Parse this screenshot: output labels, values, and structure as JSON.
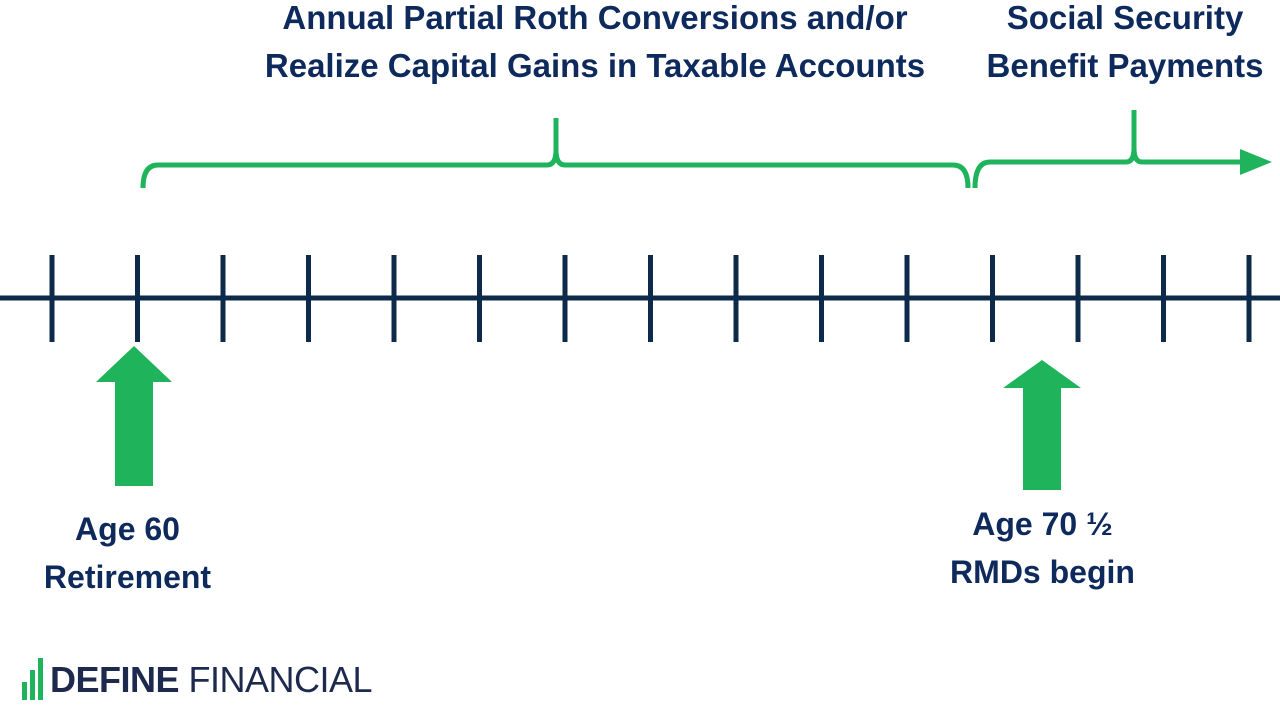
{
  "labels": {
    "conversions": {
      "line1": "Annual Partial Roth Conversions and/or",
      "line2": "Realize Capital Gains in Taxable Accounts"
    },
    "social_security": {
      "line1": "Social Security",
      "line2": "Benefit Payments"
    },
    "retirement": {
      "line1": "Age 60",
      "line2": "Retirement"
    },
    "rmd": {
      "line1": "Age 70 ½",
      "line2": "RMDs begin"
    }
  },
  "timeline": {
    "tick_count": 15
  },
  "colors": {
    "accent_green": "#1fb45c",
    "line_navy": "#0d2a4a",
    "text_navy": "#0e2a5c"
  },
  "logo": {
    "bold": "DEFINE",
    "regular": "FINANCIAL"
  }
}
